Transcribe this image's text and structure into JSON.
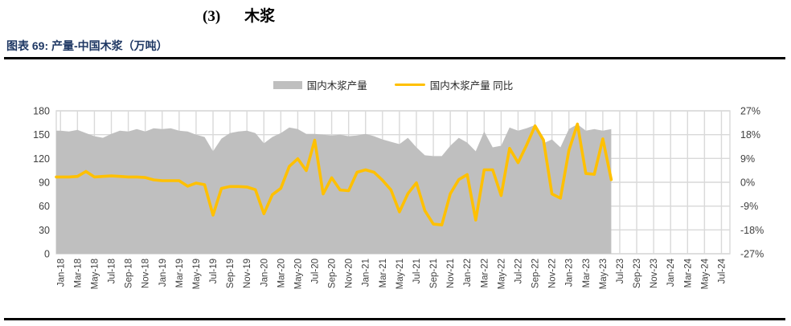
{
  "page": {
    "section_number": "(3)",
    "section_title": "木浆",
    "figure_caption": "图表 69: 产量-中国木浆（万吨）"
  },
  "legend": [
    {
      "label": "国内木浆产量",
      "type": "area",
      "color": "#BFBFBF"
    },
    {
      "label": "国内木浆产量 同比",
      "type": "line",
      "color": "#FFC000"
    }
  ],
  "colors": {
    "area_fill": "#BFBFBF",
    "line_stroke": "#FFC000",
    "gridline": "#D9D9D9",
    "axis_text": "#404040",
    "caption_text": "#1F3864",
    "rule": "#000000"
  },
  "chart_data": {
    "type": "area",
    "subtype": "combo area (left axis) + line (right axis)",
    "title": "产量-中国木浆（万吨）",
    "grid": true,
    "legend_position": "top",
    "x": [
      "Jan-18",
      "Feb-18",
      "Mar-18",
      "Apr-18",
      "May-18",
      "Jun-18",
      "Jul-18",
      "Aug-18",
      "Sep-18",
      "Oct-18",
      "Nov-18",
      "Dec-18",
      "Jan-19",
      "Feb-19",
      "Mar-19",
      "Apr-19",
      "May-19",
      "Jun-19",
      "Jul-19",
      "Aug-19",
      "Sep-19",
      "Oct-19",
      "Nov-19",
      "Dec-19",
      "Jan-20",
      "Feb-20",
      "Mar-20",
      "Apr-20",
      "May-20",
      "Jun-20",
      "Jul-20",
      "Aug-20",
      "Sep-20",
      "Oct-20",
      "Nov-20",
      "Dec-20",
      "Jan-21",
      "Feb-21",
      "Mar-21",
      "Apr-21",
      "May-21",
      "Jun-21",
      "Jul-21",
      "Aug-21",
      "Sep-21",
      "Oct-21",
      "Nov-21",
      "Dec-21",
      "Jan-22",
      "Feb-22",
      "Mar-22",
      "Apr-22",
      "May-22",
      "Jun-22",
      "Jul-22",
      "Aug-22",
      "Sep-22",
      "Oct-22",
      "Nov-22",
      "Dec-22",
      "Jan-23",
      "Feb-23",
      "Mar-23",
      "Apr-23",
      "May-23",
      "Jun-23"
    ],
    "series": [
      {
        "name": "国内木浆产量",
        "type": "area",
        "axis": "left",
        "unit": "万吨",
        "color": "#BFBFBF",
        "values": [
          155,
          154,
          156,
          152,
          148,
          146,
          151,
          155,
          154,
          157,
          154,
          158,
          157,
          158,
          155,
          154,
          150,
          147,
          129,
          145,
          152,
          154,
          155,
          152,
          139,
          147,
          152,
          159,
          157,
          151,
          151,
          150,
          149,
          150,
          148,
          149,
          151,
          148,
          144,
          141,
          138,
          146,
          134,
          124,
          123,
          123,
          136,
          146,
          140,
          129,
          154,
          134,
          136,
          159,
          155,
          158,
          162,
          139,
          144,
          134,
          157,
          163,
          155,
          157,
          155,
          157
        ]
      },
      {
        "name": "国内木浆产量 同比",
        "type": "line",
        "axis": "right",
        "unit": "%",
        "color": "#FFC000",
        "values": [
          2.0,
          2.0,
          2.2,
          4.1,
          2.0,
          2.2,
          2.4,
          2.2,
          2.0,
          2.0,
          1.8,
          0.9,
          0.6,
          0.6,
          0.6,
          -1.5,
          -0.3,
          -0.9,
          -12.4,
          -2.3,
          -1.6,
          -1.6,
          -1.8,
          -2.8,
          -11.9,
          -4.7,
          -2.3,
          6.0,
          8.9,
          4.4,
          15.9,
          -4.4,
          1.7,
          -2.9,
          -3.2,
          3.8,
          4.7,
          3.8,
          0.8,
          -2.9,
          -11.2,
          -4.3,
          -0.2,
          -10.7,
          -15.8,
          -16.1,
          -4.3,
          1.0,
          2.9,
          -14.3,
          4.7,
          4.7,
          -5.0,
          12.8,
          7.4,
          14.0,
          21.3,
          15.9,
          -4.4,
          -6.0,
          12.0,
          22.0,
          3.3,
          3.0,
          16.4,
          1.0
        ]
      }
    ],
    "left_axis": {
      "min": 0,
      "max": 180,
      "step": 30,
      "tick_labels": [
        "0",
        "30",
        "60",
        "90",
        "120",
        "150",
        "180"
      ]
    },
    "right_axis": {
      "min": -27,
      "max": 27,
      "step": 9,
      "tick_labels": [
        "27%",
        "18%",
        "9%",
        "0%",
        "-9%",
        "-18%",
        "-27%"
      ]
    },
    "x_axis": {
      "label_rotation": -90,
      "total_month_slots": 79,
      "tick_labels": [
        "Jan-18",
        "Mar-18",
        "May-18",
        "Jul-18",
        "Sep-18",
        "Nov-18",
        "Jan-19",
        "Mar-19",
        "May-19",
        "Jul-19",
        "Sep-19",
        "Nov-19",
        "Jan-20",
        "Mar-20",
        "May-20",
        "Jul-20",
        "Sep-20",
        "Nov-20",
        "Jan-21",
        "Mar-21",
        "May-21",
        "Jul-21",
        "Sep-21",
        "Nov-21",
        "Jan-22",
        "Mar-22",
        "May-22",
        "Jul-22",
        "Sep-22",
        "Nov-22",
        "Jan-23",
        "Mar-23",
        "May-23",
        "Jul-23",
        "Sep-23",
        "Nov-23",
        "Jan-24",
        "Mar-24",
        "May-24",
        "Jul-24"
      ]
    }
  }
}
